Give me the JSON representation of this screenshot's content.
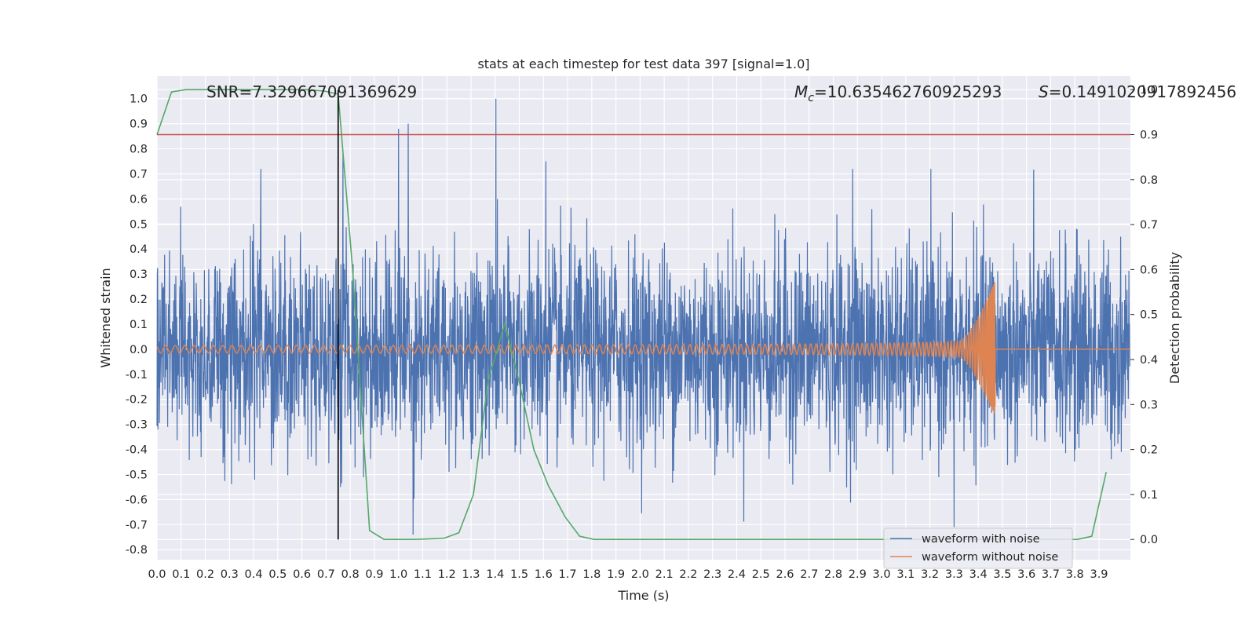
{
  "chart_data": {
    "type": "line",
    "title": "stats at each timestep for test data 397 [signal=1.0]",
    "xlabel": "Time (s)",
    "ylabel": "Whitened strain",
    "ylabel_right": "Detection probability",
    "xlim": [
      0.0,
      4.03
    ],
    "ylim": [
      -0.84,
      1.09
    ],
    "ylim_right": [
      -0.045,
      1.03
    ],
    "grid": true,
    "legend_placement": "lower-right",
    "x_ticks": [
      "0.0",
      "0.1",
      "0.2",
      "0.3",
      "0.4",
      "0.5",
      "0.6",
      "0.7",
      "0.8",
      "0.9",
      "1.0",
      "1.1",
      "1.2",
      "1.3",
      "1.4",
      "1.5",
      "1.6",
      "1.7",
      "1.8",
      "1.9",
      "2.0",
      "2.1",
      "2.2",
      "2.3",
      "2.4",
      "2.5",
      "2.6",
      "2.7",
      "2.8",
      "2.9",
      "3.0",
      "3.1",
      "3.2",
      "3.3",
      "3.4",
      "3.5",
      "3.6",
      "3.7",
      "3.8",
      "3.9"
    ],
    "y_ticks": [
      "1.0",
      "0.9",
      "0.8",
      "0.7",
      "0.6",
      "0.5",
      "0.4",
      "0.3",
      "0.2",
      "0.1",
      "0.0",
      "-0.1",
      "-0.2",
      "-0.3",
      "-0.4",
      "-0.5",
      "-0.6",
      "-0.7",
      "-0.8"
    ],
    "y_ticks_right": [
      "1.0",
      "0.9",
      "0.8",
      "0.7",
      "0.6",
      "0.5",
      "0.4",
      "0.3",
      "0.2",
      "0.1",
      "0.0"
    ],
    "annotations": {
      "snr": "SNR=7.329667091369629",
      "mc_symbol": "M",
      "mc_sub": "c",
      "mc_value": "=10.635462760925293",
      "s_symbol": "S",
      "s_value": "=0.1491020917892456"
    },
    "series": [
      {
        "name": "waveform with noise",
        "color": "#4c72b0",
        "kind": "noisy strain",
        "peak_max": 1.0,
        "peak_min": -0.74
      },
      {
        "name": "waveform without noise",
        "color": "#dd8452",
        "kind": "chirp",
        "merger_time": 3.47,
        "peak_amplitude": 0.28,
        "peak_min": -0.21
      },
      {
        "color": "#55a868",
        "axis": "right",
        "points": [
          [
            0.0,
            0.9
          ],
          [
            0.06,
            0.995
          ],
          [
            0.12,
            1.0
          ],
          [
            0.19,
            1.0
          ],
          [
            0.25,
            1.0
          ],
          [
            0.31,
            1.0
          ],
          [
            0.37,
            1.0
          ],
          [
            0.44,
            1.0
          ],
          [
            0.5,
            1.0
          ],
          [
            0.56,
            1.0
          ],
          [
            0.62,
            1.0
          ],
          [
            0.69,
            0.997
          ],
          [
            0.75,
            0.99
          ],
          [
            0.81,
            0.6
          ],
          [
            0.88,
            0.02
          ],
          [
            0.94,
            0.0
          ],
          [
            1.0,
            0.0
          ],
          [
            1.06,
            0.0
          ],
          [
            1.12,
            0.001
          ],
          [
            1.19,
            0.003
          ],
          [
            1.25,
            0.015
          ],
          [
            1.31,
            0.1
          ],
          [
            1.37,
            0.35
          ],
          [
            1.44,
            0.48
          ],
          [
            1.5,
            0.35
          ],
          [
            1.56,
            0.2
          ],
          [
            1.62,
            0.12
          ],
          [
            1.69,
            0.05
          ],
          [
            1.75,
            0.007
          ],
          [
            1.81,
            0.0
          ],
          [
            2.0,
            0.0
          ],
          [
            2.5,
            0.0
          ],
          [
            3.0,
            0.0
          ],
          [
            3.5,
            0.0
          ],
          [
            3.75,
            0.0
          ],
          [
            3.81,
            0.0
          ],
          [
            3.87,
            0.007
          ],
          [
            3.93,
            0.15
          ]
        ]
      },
      {
        "color": "#c44e52",
        "axis": "right",
        "kind": "threshold",
        "value": 0.9
      },
      {
        "color": "#000000",
        "kind": "vertical marker",
        "x": 0.75
      }
    ]
  }
}
